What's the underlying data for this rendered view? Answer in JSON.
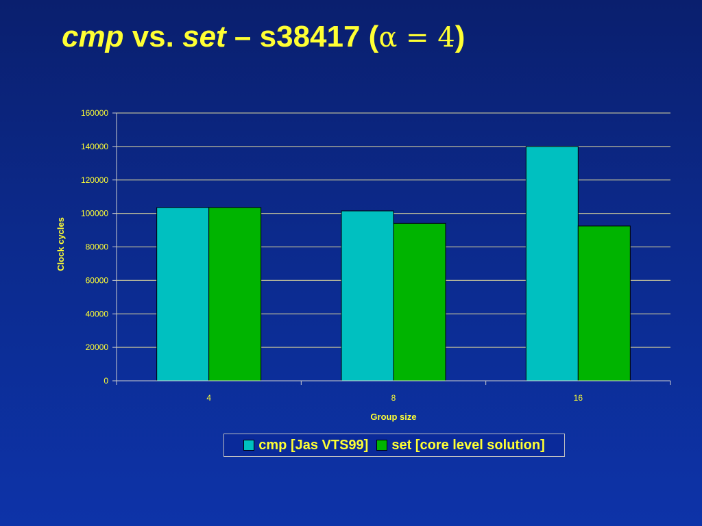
{
  "slide": {
    "title_parts": {
      "cmp": "cmp",
      "vs": " vs. ",
      "set": "set",
      "rest": " – s38417 (",
      "math": "α = 4",
      "close": ")"
    }
  },
  "colors": {
    "title": "#ffff33",
    "axis_text": "#ffff33",
    "gridline": "#b8b89a",
    "cmp": "#00c0c0",
    "set": "#00b400"
  },
  "chart_data": {
    "type": "bar",
    "categories": [
      "4",
      "8",
      "16"
    ],
    "series": [
      {
        "name": "cmp [Jas VTS99]",
        "values": [
          103500,
          101500,
          140000
        ],
        "color": "#00c0c0"
      },
      {
        "name": "set [core level solution]",
        "values": [
          103500,
          94000,
          92500
        ],
        "color": "#00b400"
      }
    ],
    "xlabel": "Group size",
    "ylabel": "Clock cycles",
    "ylim": [
      0,
      160000
    ],
    "yticks": [
      0,
      20000,
      40000,
      60000,
      80000,
      100000,
      120000,
      140000,
      160000
    ],
    "grid": true,
    "legend_position": "bottom"
  }
}
